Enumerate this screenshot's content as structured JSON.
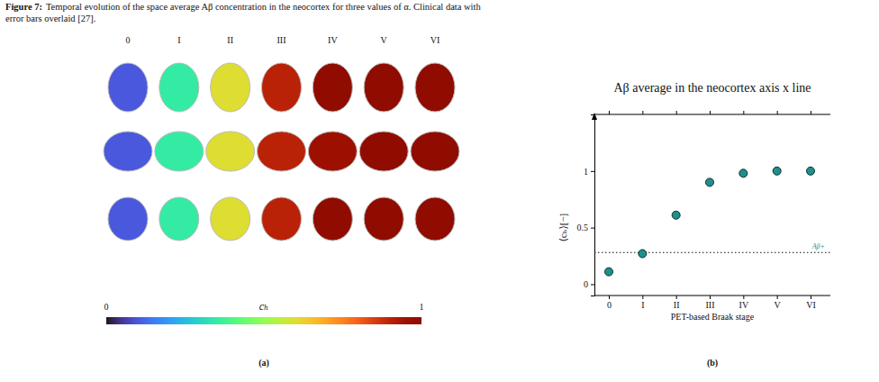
{
  "caption": {
    "label": "Figure 7:",
    "text": [
      "Temporal evolution of the space average Aβ concentration in the neocortex for three values of α. Clinical data with",
      "error bars overlaid [27]."
    ]
  },
  "chart_data": [
    {
      "type": "heatmap",
      "panel": "(a)",
      "categories": [
        "0",
        "I",
        "II",
        "III",
        "IV",
        "V",
        "VI"
      ],
      "cells": [
        [
          0.1,
          0.35,
          0.6,
          0.9,
          1,
          1,
          1
        ],
        [
          0.1,
          0.35,
          0.6,
          0.9,
          0.95,
          1,
          1
        ],
        [
          0.1,
          0.35,
          0.6,
          0.9,
          1,
          1,
          1
        ]
      ],
      "colorbar": {
        "range": [
          0,
          1
        ],
        "ticks": [
          0,
          1
        ],
        "title": "cₕ"
      }
    },
    {
      "type": "scatter",
      "panel": "(b)",
      "title": "Aβ average in the neocortex axis x line",
      "x_label": "PET-based Braak stage",
      "y_label": "⟨cₕ⟩[−]",
      "categories": [
        "0",
        "I",
        "II",
        "III",
        "IV",
        "V",
        "VI"
      ],
      "values": [
        0.11,
        0.27,
        0.61,
        0.9,
        0.98,
        1.0,
        1.0
      ],
      "color": "#1f8f8c",
      "marker": "circle",
      "ylim": [
        -0.1,
        1.5
      ],
      "yticks": [
        0,
        0.5,
        1
      ],
      "annotations": [
        {
          "text": "Aβ+",
          "y": 0.28,
          "line_style": "dotted"
        }
      ]
    }
  ]
}
